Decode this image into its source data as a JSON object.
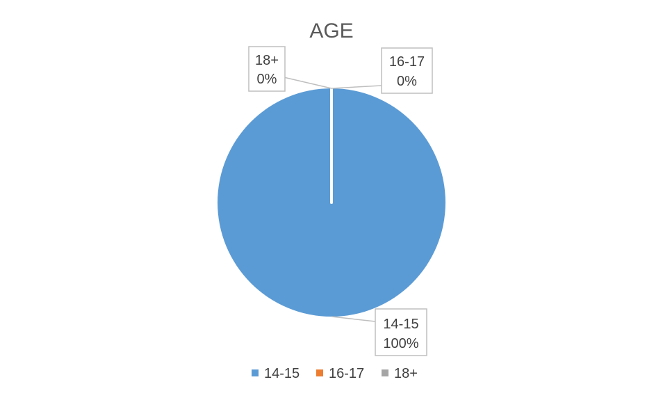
{
  "chart_data": {
    "type": "pie",
    "title": "AGE",
    "categories": [
      "14-15",
      "16-17",
      "18+"
    ],
    "values": [
      100,
      0,
      0
    ],
    "data_labels": [
      {
        "category": "14-15",
        "percent": "100%"
      },
      {
        "category": "16-17",
        "percent": "0%"
      },
      {
        "category": "18+",
        "percent": "0%"
      }
    ],
    "colors": [
      "#5b9bd5",
      "#ed7d31",
      "#a5a5a5"
    ],
    "legend_position": "bottom"
  }
}
